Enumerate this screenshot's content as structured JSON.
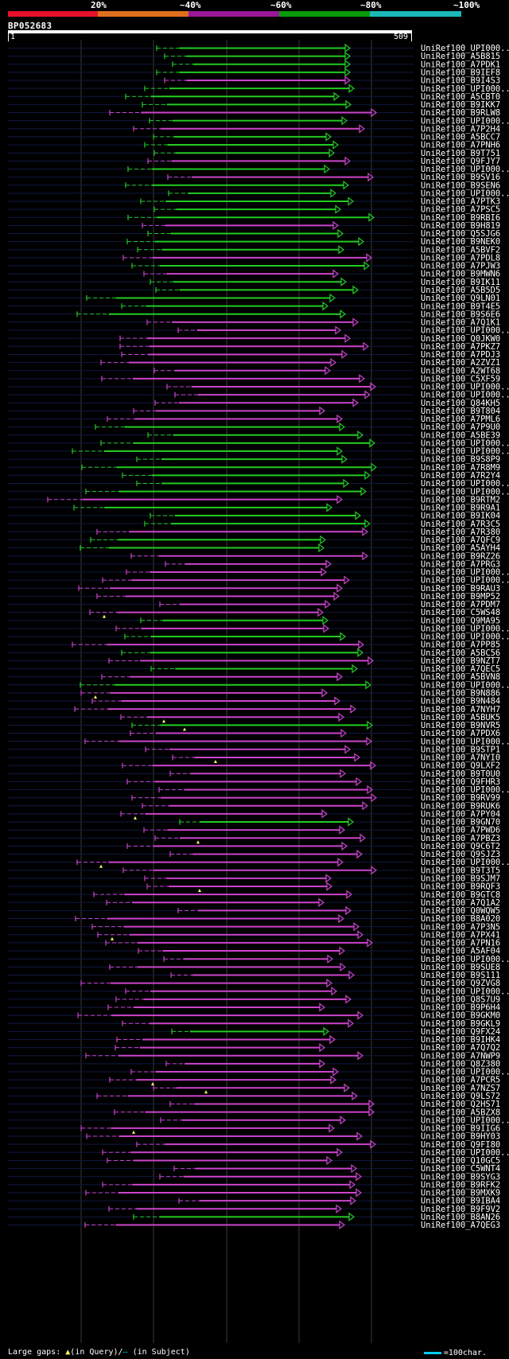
{
  "header": {
    "percent_labels": [
      "20%",
      "~40%",
      "~60%",
      "~80%",
      "~100%"
    ],
    "bar_colors": [
      "#e8102a",
      "#e0701c",
      "#9a1898",
      "#0a9a0a",
      "#1ab8b8"
    ]
  },
  "query": {
    "id": "BP052683",
    "start": "1",
    "end": "509"
  },
  "colors": {
    "high_identity": "#22cc22",
    "low_identity": "#cc44cc",
    "track": "#101840",
    "gridline": "#3a3a3a",
    "gap_marker": "#ffff66"
  },
  "hits": [
    "UniRef100_UPI000...",
    "UniRef100_A5B815",
    "UniRef100_A7PDK1",
    "UniRef100_B9IEF8",
    "UniRef100_B9I4S3",
    "UniRef100_UPI000...",
    "UniRef100_A5CBT0",
    "UniRef100_B9IKK7",
    "UniRef100_B9RLW8",
    "UniRef100_UPI000...",
    "UniRef100_A7P2H4",
    "UniRef100_A5BCC7",
    "UniRef100_A7PNH6",
    "UniRef100_B9T751",
    "UniRef100_Q9FJY7",
    "UniRef100_UPI000...",
    "UniRef100_B9SV16",
    "UniRef100_B9SEN6",
    "UniRef100_UPI000...",
    "UniRef100_A7PTK3",
    "UniRef100_A7PSC5",
    "UniRef100_B9RBI6",
    "UniRef100_B9H819",
    "UniRef100_Q5SJG6",
    "UniRef100_B9NEK0",
    "UniRef100_A5BVF2",
    "UniRef100_A7PDL8",
    "UniRef100_A7PJW3",
    "UniRef100_B9MWN6",
    "UniRef100_B9IK11",
    "UniRef100_A5B5D5",
    "UniRef100_Q9LN01",
    "UniRef100_B9T4E5",
    "UniRef100_B9S6E6",
    "UniRef100_A7Q1K1",
    "UniRef100_UPI000...",
    "UniRef100_Q0JKW0",
    "UniRef100_A7PKZ7",
    "UniRef100_A7PDJ3",
    "UniRef100_A2ZVZ1",
    "UniRef100_A2WT68",
    "UniRef100_C5XF59",
    "UniRef100_UPI000...",
    "UniRef100_UPI000...",
    "UniRef100_Q84KH5",
    "UniRef100_B9T804",
    "UniRef100_A7PML6",
    "UniRef100_A7P9U0",
    "UniRef100_A5BE39",
    "UniRef100_UPI000...",
    "UniRef100_UPI000...",
    "UniRef100_B9S8P9",
    "UniRef100_A7R8M9",
    "UniRef100_A7R2Y4",
    "UniRef100_UPI000...",
    "UniRef100_UPI000...",
    "UniRef100_B9RTM2",
    "UniRef100_B9R9A1",
    "UniRef100_B9IK04",
    "UniRef100_A7R3C5",
    "UniRef100_A7R380",
    "UniRef100_A7QFC9",
    "UniRef100_A5AYH4",
    "UniRef100_B9RZ26",
    "UniRef100_A7PRG3",
    "UniRef100_UPI000...",
    "UniRef100_UPI000...",
    "UniRef100_B9RAU3",
    "UniRef100_B9MP52",
    "UniRef100_A7PDM7",
    "UniRef100_C5WS48",
    "UniRef100_Q9MA95",
    "UniRef100_UPI000...",
    "UniRef100_UPI000...",
    "UniRef100_A7PP85",
    "UniRef100_A5BC56",
    "UniRef100_B9NZT7",
    "UniRef100_A7QEC5",
    "UniRef100_A5BVN8",
    "UniRef100_UPI000...",
    "UniRef100_B9N886",
    "UniRef100_B9N484",
    "UniRef100_A7NYH7",
    "UniRef100_A5BUK5",
    "UniRef100_B9NVR5",
    "UniRef100_A7PDX6",
    "UniRef100_UPI000...",
    "UniRef100_B9STP1",
    "UniRef100_A7NYI0",
    "UniRef100_Q9LXF2",
    "UniRef100_B9T0U0",
    "UniRef100_Q9FHR3",
    "UniRef100_UPI000...",
    "UniRef100_B9RV99",
    "UniRef100_B9RUK6",
    "UniRef100_A7PY04",
    "UniRef100_B9GN70",
    "UniRef100_A7PWD6",
    "UniRef100_A7PBZ3",
    "UniRef100_Q9C6T2",
    "UniRef100_Q9SJZ3",
    "UniRef100_UPI000...",
    "UniRef100_B9T3T5",
    "UniRef100_B9SJM7",
    "UniRef100_B9RQF3",
    "UniRef100_B9GTC8",
    "UniRef100_A7Q1A2",
    "UniRef100_Q0WQW5",
    "UniRef100_B8A020",
    "UniRef100_A7P3N5",
    "UniRef100_A7PX41",
    "UniRef100_A7PN16",
    "UniRef100_A5AF04",
    "UniRef100_UPI000...",
    "UniRef100_B9SUE8",
    "UniRef100_B9S111",
    "UniRef100_Q9ZVG8",
    "UniRef100_UPI000...",
    "UniRef100_Q8S7U9",
    "UniRef100_B9P6H4",
    "UniRef100_B9GKM0",
    "UniRef100_B9GKL9",
    "UniRef100_Q9FX24",
    "UniRef100_B9IHK4",
    "UniRef100_A7Q7Q2",
    "UniRef100_A7NWP9",
    "UniRef100_Q8Z380",
    "UniRef100_UPI000...",
    "UniRef100_A7PCR5",
    "UniRef100_A7NZS7",
    "UniRef100_Q9LS72",
    "UniRef100_Q2HS71",
    "UniRef100_A5BZX8",
    "UniRef100_UPI000...",
    "UniRef100_B9IIG6",
    "UniRef100_B9HY03",
    "UniRef100_Q9FI80",
    "UniRef100_UPI000...",
    "UniRef100_Q10GC5",
    "UniRef100_C5WNT4",
    "UniRef100_B9SYG3",
    "UniRef100_B9RFK2",
    "UniRef100_B9MXK9",
    "UniRef100_B9IBA4",
    "UniRef100_B9F9V2",
    "UniRef100_B8AN26",
    "UniRef100_A7QEG3"
  ],
  "legend": {
    "prefix": "Large gaps:",
    "query_gap": "(in Query)/",
    "subject_gap": "(in Subject)",
    "scale_text": "=100char."
  }
}
